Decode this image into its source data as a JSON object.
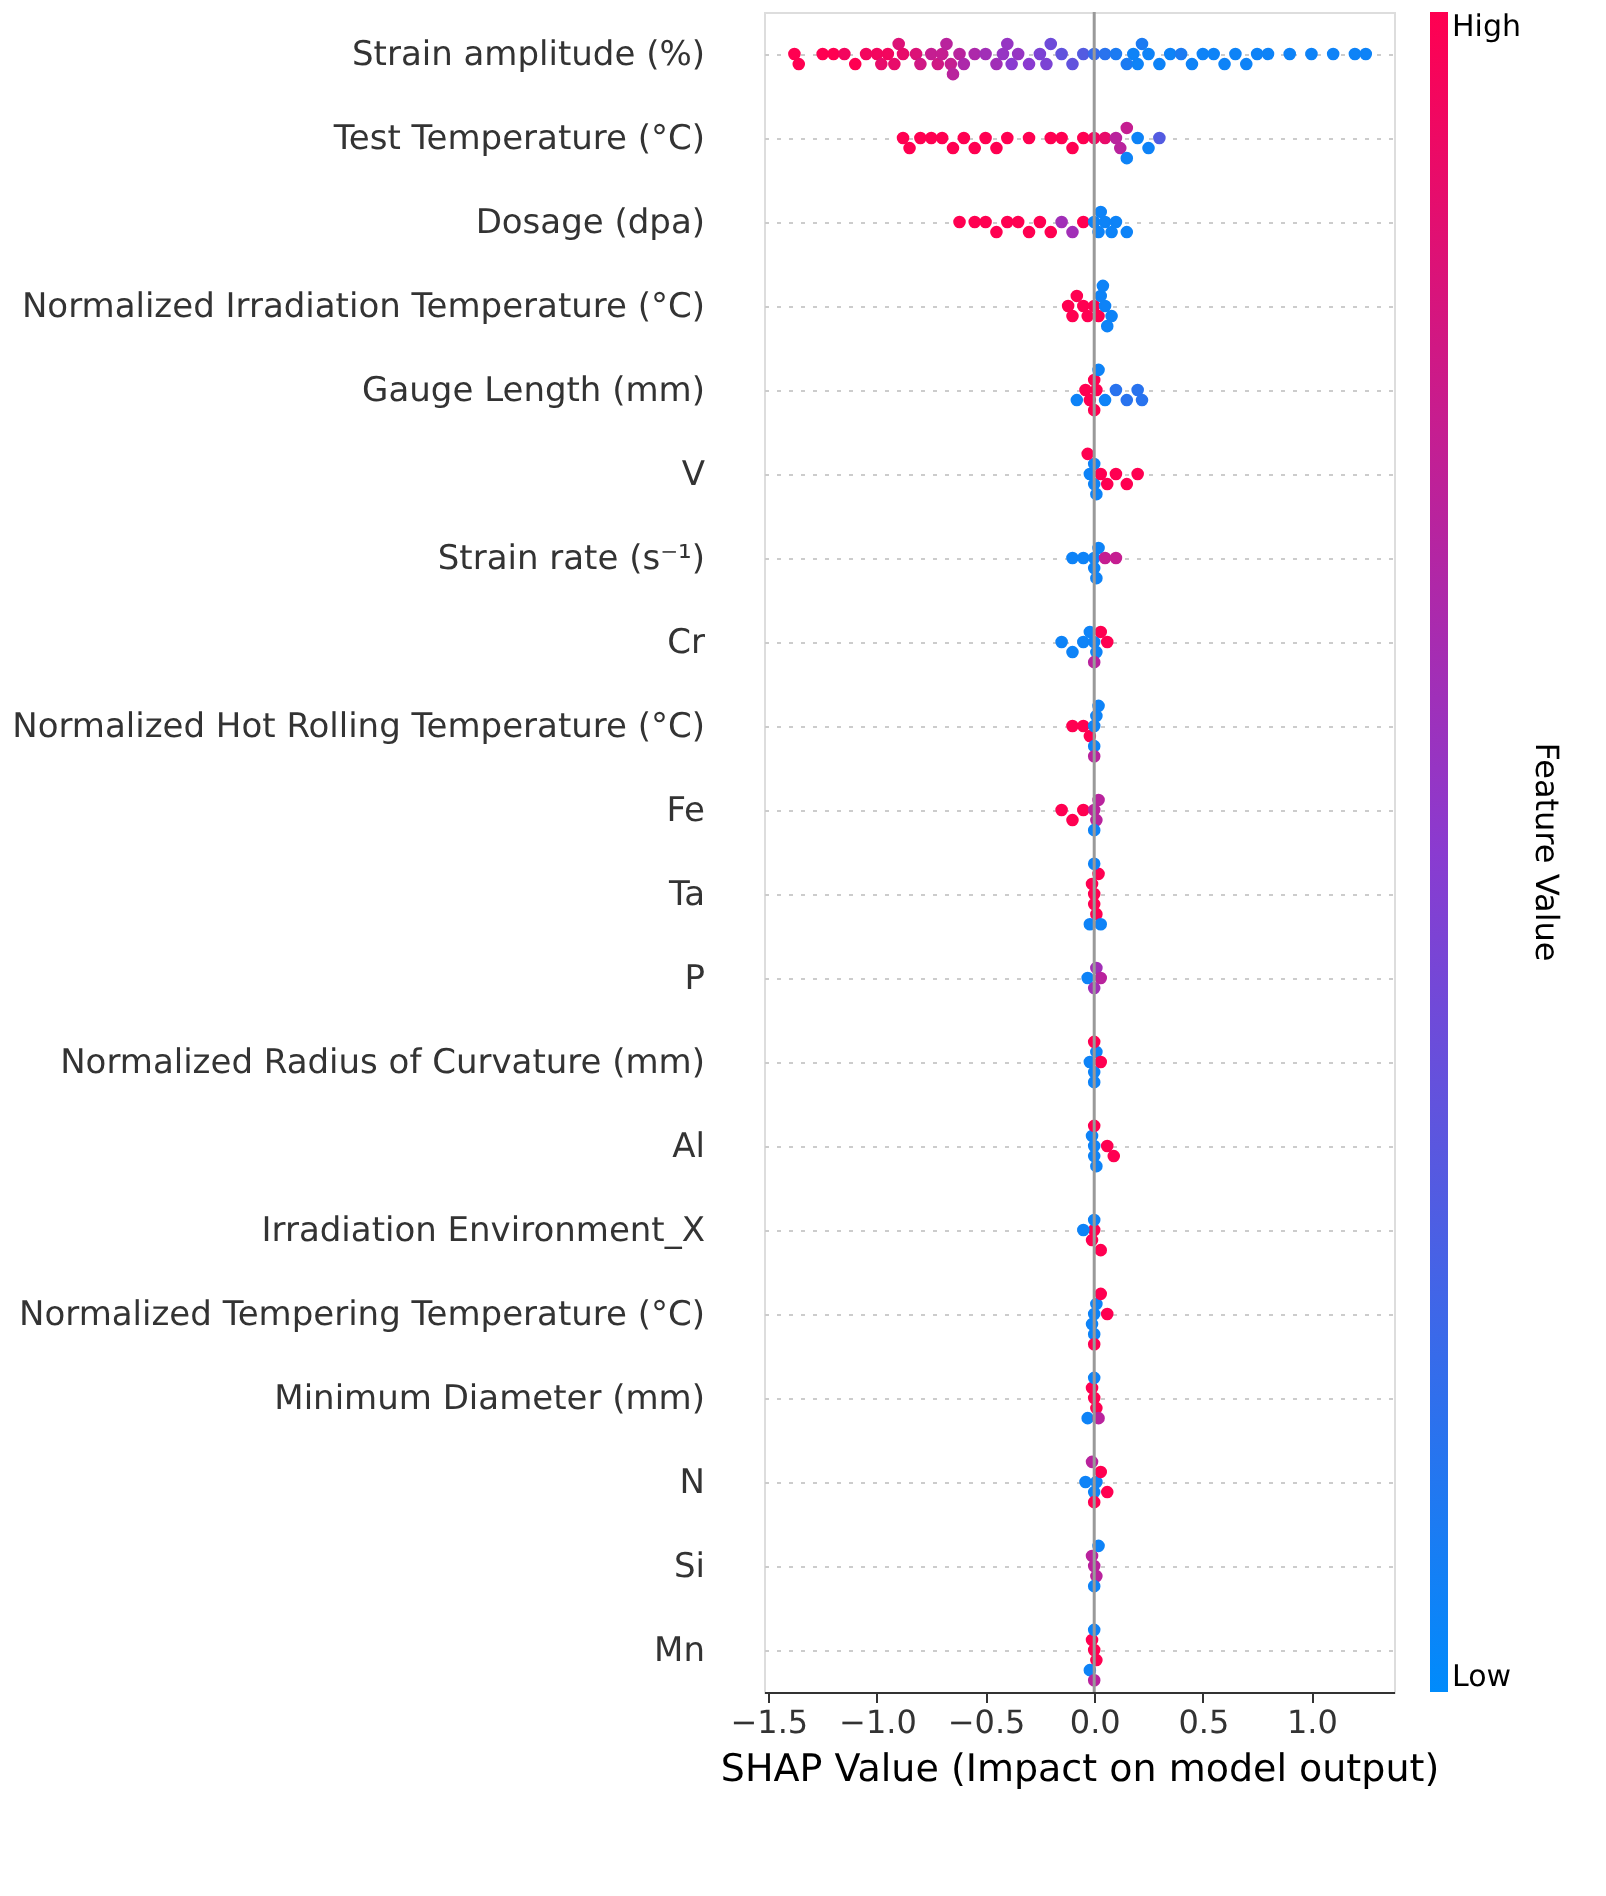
{
  "chart_data": {
    "type": "scatter",
    "orientation": "horizontal",
    "xlabel": "SHAP Value (Impact on model output)",
    "clabel": "Feature Value",
    "marker": "circle",
    "categories": [
      "Strain amplitude (%)",
      "Test Temperature (°C)",
      "Dosage (dpa)",
      "Normalized Irradiation Temperature (°C)",
      "Gauge Length (mm)",
      "V",
      "Strain rate (s⁻¹)",
      "Cr",
      "Normalized Hot Rolling Temperature (°C)",
      "Fe",
      "Ta",
      "P",
      "Normalized Radius of Curvature (mm)",
      "Al",
      "Irradiation Environment_X",
      "Normalized Tempering Temperature (°C)",
      "Minimum Diameter (mm)",
      "N",
      "Si",
      "Mn"
    ],
    "series": [
      {
        "x": [
          "Strain amplitude (%)",
          "Strain amplitude (%)",
          "Strain amplitude (%)",
          "Strain amplitude (%)",
          "Strain amplitude (%)",
          "Strain amplitude (%)",
          "Strain amplitude (%)",
          "Strain amplitude (%)",
          "Strain amplitude (%)",
          "Strain amplitude (%)",
          "Strain amplitude (%)",
          "Strain amplitude (%)",
          "Strain amplitude (%)",
          "Strain amplitude (%)",
          "Strain amplitude (%)",
          "Strain amplitude (%)",
          "Strain amplitude (%)",
          "Strain amplitude (%)",
          "Strain amplitude (%)",
          "Strain amplitude (%)",
          "Strain amplitude (%)",
          "Strain amplitude (%)",
          "Strain amplitude (%)",
          "Strain amplitude (%)",
          "Strain amplitude (%)",
          "Strain amplitude (%)",
          "Strain amplitude (%)",
          "Strain amplitude (%)",
          "Strain amplitude (%)",
          "Strain amplitude (%)",
          "Strain amplitude (%)",
          "Strain amplitude (%)",
          "Strain amplitude (%)",
          "Strain amplitude (%)",
          "Strain amplitude (%)",
          "Strain amplitude (%)",
          "Strain amplitude (%)",
          "Strain amplitude (%)",
          "Strain amplitude (%)",
          "Strain amplitude (%)",
          "Strain amplitude (%)",
          "Strain amplitude (%)",
          "Strain amplitude (%)",
          "Strain amplitude (%)",
          "Strain amplitude (%)",
          "Strain amplitude (%)",
          "Strain amplitude (%)",
          "Strain amplitude (%)",
          "Strain amplitude (%)",
          "Strain amplitude (%)",
          "Strain amplitude (%)",
          "Strain amplitude (%)",
          "Strain amplitude (%)",
          "Strain amplitude (%)",
          "Strain amplitude (%)",
          "Strain amplitude (%)",
          "Strain amplitude (%)",
          "Strain amplitude (%)",
          "Strain amplitude (%)",
          "Strain amplitude (%)",
          "Strain amplitude (%)"
        ],
        "values": [
          -1.38,
          -1.36,
          -1.25,
          -1.2,
          -1.15,
          -1.1,
          -1.05,
          -1.0,
          -0.98,
          -0.95,
          -0.92,
          -0.9,
          -0.88,
          -0.82,
          -0.8,
          -0.75,
          -0.72,
          -0.7,
          -0.68,
          -0.66,
          -0.65,
          -0.62,
          -0.6,
          -0.55,
          -0.5,
          -0.45,
          -0.42,
          -0.4,
          -0.38,
          -0.35,
          -0.3,
          -0.25,
          -0.22,
          -0.2,
          -0.15,
          -0.1,
          -0.05,
          0.0,
          0.05,
          0.1,
          0.15,
          0.18,
          0.2,
          0.22,
          0.25,
          0.3,
          0.35,
          0.4,
          0.45,
          0.5,
          0.55,
          0.6,
          0.65,
          0.7,
          0.75,
          0.8,
          0.9,
          1.0,
          1.1,
          1.2,
          1.25
        ],
        "cvalues": [
          1,
          1,
          1,
          1,
          0.95,
          1,
          0.95,
          0.95,
          0.9,
          0.95,
          0.9,
          0.85,
          0.9,
          0.85,
          0.8,
          0.75,
          0.8,
          0.75,
          0.7,
          0.75,
          0.7,
          0.7,
          0.65,
          0.65,
          0.6,
          0.6,
          0.55,
          0.55,
          0.5,
          0.55,
          0.5,
          0.45,
          0.45,
          0.4,
          0.35,
          0.35,
          0.3,
          0.2,
          0.15,
          0.1,
          0.1,
          0.05,
          0.05,
          0.1,
          0.05,
          0.05,
          0.05,
          0.1,
          0.05,
          0.05,
          0.05,
          0.05,
          0.05,
          0.05,
          0.05,
          0.05,
          0.05,
          0.05,
          0.05,
          0.05,
          0.05
        ],
        "colors": [
          "#ff0051",
          "#ff0051",
          "#ff0051",
          "#ff0051",
          "#f3065e",
          "#ff0051",
          "#f3065e",
          "#f3065e",
          "#e80c6a",
          "#f3065e",
          "#e80c6a",
          "#dc1277",
          "#e80c6a",
          "#dc1277",
          "#d01884",
          "#c51e91",
          "#d01884",
          "#c51e91",
          "#b9239d",
          "#c51e91",
          "#b9239d",
          "#b9239d",
          "#ad29aa",
          "#ad29aa",
          "#a12fb7",
          "#a12fb7",
          "#9635c3",
          "#9635c3",
          "#8a3bd0",
          "#9635c3",
          "#8a3bd0",
          "#7c43d4",
          "#7c43d4",
          "#6e4bd9",
          "#6153dd",
          "#6153dd",
          "#535be1",
          "#376bea",
          "#2973ee",
          "#1c7bf2",
          "#1c7bf2",
          "#0e83f7",
          "#0e83f7",
          "#1c7bf2",
          "#0e83f7",
          "#0e83f7",
          "#0e83f7",
          "#1c7bf2",
          "#0e83f7",
          "#0e83f7",
          "#0e83f7",
          "#0e83f7",
          "#0e83f7",
          "#0e83f7",
          "#0e83f7",
          "#0e83f7",
          "#0e83f7",
          "#0e83f7",
          "#0e83f7",
          "#0e83f7",
          "#0e83f7"
        ]
      },
      {
        "x": [
          "Test Temperature (°C)",
          "Test Temperature (°C)",
          "Test Temperature (°C)",
          "Test Temperature (°C)",
          "Test Temperature (°C)",
          "Test Temperature (°C)",
          "Test Temperature (°C)",
          "Test Temperature (°C)",
          "Test Temperature (°C)",
          "Test Temperature (°C)",
          "Test Temperature (°C)",
          "Test Temperature (°C)",
          "Test Temperature (°C)",
          "Test Temperature (°C)",
          "Test Temperature (°C)",
          "Test Temperature (°C)",
          "Test Temperature (°C)",
          "Test Temperature (°C)",
          "Test Temperature (°C)",
          "Test Temperature (°C)",
          "Test Temperature (°C)",
          "Test Temperature (°C)",
          "Test Temperature (°C)",
          "Test Temperature (°C)",
          "Test Temperature (°C)"
        ],
        "values": [
          -0.88,
          -0.85,
          -0.8,
          -0.75,
          -0.7,
          -0.65,
          -0.6,
          -0.55,
          -0.5,
          -0.45,
          -0.4,
          -0.3,
          -0.2,
          -0.15,
          -0.1,
          -0.05,
          0.0,
          0.05,
          0.1,
          0.12,
          0.15,
          0.15,
          0.2,
          0.25,
          0.3
        ],
        "cvalues": [
          1,
          1,
          1,
          1,
          1,
          1,
          1,
          1,
          1,
          1,
          1,
          1,
          1,
          1,
          1,
          1,
          0.95,
          0.9,
          0.7,
          0.7,
          0.75,
          0.05,
          0.05,
          0.05,
          0.3
        ],
        "colors": [
          "#ff0051",
          "#ff0051",
          "#ff0051",
          "#ff0051",
          "#ff0051",
          "#ff0051",
          "#ff0051",
          "#ff0051",
          "#ff0051",
          "#ff0051",
          "#ff0051",
          "#ff0051",
          "#ff0051",
          "#ff0051",
          "#ff0051",
          "#ff0051",
          "#f3065e",
          "#e80c6a",
          "#b9239d",
          "#b9239d",
          "#c51e91",
          "#0e83f7",
          "#0e83f7",
          "#0e83f7",
          "#535be1"
        ]
      },
      {
        "x": [
          "Dosage (dpa)",
          "Dosage (dpa)",
          "Dosage (dpa)",
          "Dosage (dpa)",
          "Dosage (dpa)",
          "Dosage (dpa)",
          "Dosage (dpa)",
          "Dosage (dpa)",
          "Dosage (dpa)",
          "Dosage (dpa)",
          "Dosage (dpa)",
          "Dosage (dpa)",
          "Dosage (dpa)",
          "Dosage (dpa)",
          "Dosage (dpa)",
          "Dosage (dpa)",
          "Dosage (dpa)",
          "Dosage (dpa)",
          "Dosage (dpa)"
        ],
        "values": [
          -0.62,
          -0.55,
          -0.5,
          -0.45,
          -0.4,
          -0.35,
          -0.3,
          -0.25,
          -0.2,
          -0.15,
          -0.1,
          -0.05,
          0.0,
          0.02,
          0.05,
          0.08,
          0.1,
          0.03,
          0.15
        ],
        "cvalues": [
          1,
          1,
          1,
          1,
          1,
          1,
          1,
          1,
          1,
          0.6,
          0.6,
          1,
          0.05,
          0.05,
          0.05,
          0.05,
          0.05,
          0.05,
          0.05
        ],
        "colors": [
          "#ff0051",
          "#ff0051",
          "#ff0051",
          "#ff0051",
          "#ff0051",
          "#ff0051",
          "#ff0051",
          "#ff0051",
          "#ff0051",
          "#a12fb7",
          "#a12fb7",
          "#ff0051",
          "#0e83f7",
          "#0e83f7",
          "#0e83f7",
          "#0e83f7",
          "#0e83f7",
          "#0e83f7",
          "#0e83f7"
        ]
      },
      {
        "x": [
          "Normalized Irradiation Temperature (°C)",
          "Normalized Irradiation Temperature (°C)",
          "Normalized Irradiation Temperature (°C)",
          "Normalized Irradiation Temperature (°C)",
          "Normalized Irradiation Temperature (°C)",
          "Normalized Irradiation Temperature (°C)",
          "Normalized Irradiation Temperature (°C)",
          "Normalized Irradiation Temperature (°C)",
          "Normalized Irradiation Temperature (°C)",
          "Normalized Irradiation Temperature (°C)",
          "Normalized Irradiation Temperature (°C)",
          "Normalized Irradiation Temperature (°C)"
        ],
        "values": [
          -0.12,
          -0.1,
          -0.08,
          -0.05,
          -0.03,
          0.0,
          0.02,
          0.03,
          0.05,
          0.06,
          0.08,
          0.04
        ],
        "cvalues": [
          1,
          1,
          1,
          1,
          1,
          1,
          1,
          0.05,
          0.05,
          0.05,
          0.05,
          0.05
        ],
        "colors": [
          "#ff0051",
          "#ff0051",
          "#ff0051",
          "#ff0051",
          "#ff0051",
          "#ff0051",
          "#ff0051",
          "#0e83f7",
          "#0e83f7",
          "#0e83f7",
          "#0e83f7",
          "#0e83f7"
        ]
      },
      {
        "x": [
          "Gauge Length (mm)",
          "Gauge Length (mm)",
          "Gauge Length (mm)",
          "Gauge Length (mm)",
          "Gauge Length (mm)",
          "Gauge Length (mm)",
          "Gauge Length (mm)",
          "Gauge Length (mm)",
          "Gauge Length (mm)",
          "Gauge Length (mm)",
          "Gauge Length (mm)",
          "Gauge Length (mm)"
        ],
        "values": [
          -0.04,
          -0.02,
          0.0,
          0.0,
          0.01,
          -0.08,
          0.05,
          0.1,
          0.15,
          0.2,
          0.22,
          0.02
        ],
        "cvalues": [
          1,
          1,
          1,
          1,
          1,
          0.05,
          0.05,
          0.15,
          0.15,
          0.15,
          0.15,
          0.05
        ],
        "colors": [
          "#ff0051",
          "#ff0051",
          "#ff0051",
          "#ff0051",
          "#ff0051",
          "#0e83f7",
          "#0e83f7",
          "#2973ee",
          "#2973ee",
          "#2973ee",
          "#2973ee",
          "#0e83f7"
        ]
      },
      {
        "x": [
          "V",
          "V",
          "V",
          "V",
          "V",
          "V",
          "V",
          "V",
          "V",
          "V"
        ],
        "values": [
          -0.02,
          0.0,
          0.0,
          0.01,
          -0.03,
          0.03,
          0.06,
          0.1,
          0.15,
          0.2
        ],
        "cvalues": [
          0.05,
          0.05,
          0.05,
          0.05,
          1,
          1,
          1,
          1,
          1,
          1
        ],
        "colors": [
          "#0e83f7",
          "#0e83f7",
          "#0e83f7",
          "#0e83f7",
          "#ff0051",
          "#ff0051",
          "#ff0051",
          "#ff0051",
          "#ff0051",
          "#ff0051"
        ]
      },
      {
        "x": [
          "Strain rate (s⁻¹)",
          "Strain rate (s⁻¹)",
          "Strain rate (s⁻¹)",
          "Strain rate (s⁻¹)",
          "Strain rate (s⁻¹)",
          "Strain rate (s⁻¹)",
          "Strain rate (s⁻¹)",
          "Strain rate (s⁻¹)"
        ],
        "values": [
          -0.1,
          -0.05,
          0.0,
          0.0,
          0.02,
          0.01,
          0.05,
          0.1
        ],
        "cvalues": [
          0.05,
          0.05,
          0.05,
          0.05,
          0.05,
          0.05,
          0.75,
          0.75
        ],
        "colors": [
          "#0e83f7",
          "#0e83f7",
          "#0e83f7",
          "#0e83f7",
          "#0e83f7",
          "#0e83f7",
          "#c51e91",
          "#c51e91"
        ]
      },
      {
        "x": [
          "Cr",
          "Cr",
          "Cr",
          "Cr",
          "Cr",
          "Cr",
          "Cr",
          "Cr",
          "Cr"
        ],
        "values": [
          -0.15,
          -0.1,
          -0.05,
          0.0,
          0.01,
          -0.02,
          0.03,
          0.06,
          0.0
        ],
        "cvalues": [
          0.05,
          0.05,
          0.05,
          0.05,
          0.05,
          0.05,
          1,
          1,
          0.7
        ],
        "colors": [
          "#0e83f7",
          "#0e83f7",
          "#0e83f7",
          "#0e83f7",
          "#0e83f7",
          "#0e83f7",
          "#ff0051",
          "#ff0051",
          "#b9239d"
        ]
      },
      {
        "x": [
          "Normalized Hot Rolling Temperature (°C)",
          "Normalized Hot Rolling Temperature (°C)",
          "Normalized Hot Rolling Temperature (°C)",
          "Normalized Hot Rolling Temperature (°C)",
          "Normalized Hot Rolling Temperature (°C)",
          "Normalized Hot Rolling Temperature (°C)",
          "Normalized Hot Rolling Temperature (°C)",
          "Normalized Hot Rolling Temperature (°C)"
        ],
        "values": [
          -0.1,
          -0.05,
          -0.02,
          0.0,
          0.01,
          0.0,
          0.02,
          0.0
        ],
        "cvalues": [
          1,
          1,
          1,
          0.05,
          0.05,
          0.05,
          0.05,
          0.7
        ],
        "colors": [
          "#ff0051",
          "#ff0051",
          "#ff0051",
          "#0e83f7",
          "#0e83f7",
          "#0e83f7",
          "#0e83f7",
          "#b9239d"
        ]
      },
      {
        "x": [
          "Fe",
          "Fe",
          "Fe",
          "Fe",
          "Fe",
          "Fe",
          "Fe"
        ],
        "values": [
          -0.15,
          -0.1,
          -0.05,
          0.0,
          0.01,
          0.02,
          0.0
        ],
        "cvalues": [
          1,
          1,
          1,
          0.7,
          0.7,
          0.7,
          0.05
        ],
        "colors": [
          "#ff0051",
          "#ff0051",
          "#ff0051",
          "#b9239d",
          "#b9239d",
          "#b9239d",
          "#0e83f7"
        ]
      },
      {
        "x": [
          "Ta",
          "Ta",
          "Ta",
          "Ta",
          "Ta",
          "Ta",
          "Ta",
          "Ta"
        ],
        "values": [
          0.0,
          0.0,
          -0.01,
          0.01,
          0.02,
          -0.02,
          0.03,
          0.0
        ],
        "cvalues": [
          1,
          1,
          1,
          1,
          1,
          0.05,
          0.05,
          0.05
        ],
        "colors": [
          "#ff0051",
          "#ff0051",
          "#ff0051",
          "#ff0051",
          "#ff0051",
          "#0e83f7",
          "#0e83f7",
          "#0e83f7"
        ]
      },
      {
        "x": [
          "P",
          "P",
          "P",
          "P"
        ],
        "values": [
          -0.03,
          0.0,
          0.01,
          0.03
        ],
        "cvalues": [
          0.05,
          0.6,
          0.6,
          0.7
        ],
        "colors": [
          "#0e83f7",
          "#a12fb7",
          "#a12fb7",
          "#b9239d"
        ]
      },
      {
        "x": [
          "Normalized Radius of Curvature (mm)",
          "Normalized Radius of Curvature (mm)",
          "Normalized Radius of Curvature (mm)",
          "Normalized Radius of Curvature (mm)",
          "Normalized Radius of Curvature (mm)",
          "Normalized Radius of Curvature (mm)"
        ],
        "values": [
          -0.02,
          0.0,
          0.01,
          0.0,
          0.03,
          0.0
        ],
        "cvalues": [
          0.05,
          0.05,
          0.05,
          0.05,
          1,
          1
        ],
        "colors": [
          "#0e83f7",
          "#0e83f7",
          "#0e83f7",
          "#0e83f7",
          "#ff0051",
          "#ff0051"
        ]
      },
      {
        "x": [
          "Al",
          "Al",
          "Al",
          "Al",
          "Al",
          "Al",
          "Al"
        ],
        "values": [
          0.0,
          0.0,
          -0.01,
          0.01,
          0.06,
          0.09,
          0.0
        ],
        "cvalues": [
          0.05,
          0.05,
          0.05,
          0.05,
          1,
          1,
          1
        ],
        "colors": [
          "#0e83f7",
          "#0e83f7",
          "#0e83f7",
          "#0e83f7",
          "#ff0051",
          "#ff0051",
          "#ff0051"
        ]
      },
      {
        "x": [
          "Irradiation Environment_X",
          "Irradiation Environment_X",
          "Irradiation Environment_X",
          "Irradiation Environment_X",
          "Irradiation Environment_X"
        ],
        "values": [
          0.0,
          -0.01,
          -0.05,
          0.0,
          0.03
        ],
        "cvalues": [
          1,
          1,
          0.05,
          0.05,
          1
        ],
        "colors": [
          "#ff0051",
          "#ff0051",
          "#0e83f7",
          "#0e83f7",
          "#ff0051"
        ]
      },
      {
        "x": [
          "Normalized Tempering Temperature (°C)",
          "Normalized Tempering Temperature (°C)",
          "Normalized Tempering Temperature (°C)",
          "Normalized Tempering Temperature (°C)",
          "Normalized Tempering Temperature (°C)",
          "Normalized Tempering Temperature (°C)",
          "Normalized Tempering Temperature (°C)"
        ],
        "values": [
          0.0,
          -0.01,
          0.01,
          0.0,
          0.03,
          0.06,
          0.0
        ],
        "cvalues": [
          0.05,
          0.05,
          0.05,
          0.05,
          1,
          1,
          1
        ],
        "colors": [
          "#0e83f7",
          "#0e83f7",
          "#0e83f7",
          "#0e83f7",
          "#ff0051",
          "#ff0051",
          "#ff0051"
        ]
      },
      {
        "x": [
          "Minimum Diameter (mm)",
          "Minimum Diameter (mm)",
          "Minimum Diameter (mm)",
          "Minimum Diameter (mm)",
          "Minimum Diameter (mm)",
          "Minimum Diameter (mm)"
        ],
        "values": [
          0.0,
          0.01,
          -0.01,
          -0.03,
          0.0,
          0.02
        ],
        "cvalues": [
          1,
          1,
          1,
          0.05,
          0.05,
          0.7
        ],
        "colors": [
          "#ff0051",
          "#ff0051",
          "#ff0051",
          "#0e83f7",
          "#0e83f7",
          "#b9239d"
        ]
      },
      {
        "x": [
          "N",
          "N",
          "N",
          "N",
          "N",
          "N",
          "N"
        ],
        "values": [
          -0.04,
          0.0,
          0.01,
          0.03,
          0.06,
          0.0,
          -0.01
        ],
        "cvalues": [
          0.05,
          0.05,
          0.05,
          1,
          1,
          1,
          0.7
        ],
        "colors": [
          "#0e83f7",
          "#0e83f7",
          "#0e83f7",
          "#ff0051",
          "#ff0051",
          "#ff0051",
          "#b9239d"
        ]
      },
      {
        "x": [
          "Si",
          "Si",
          "Si",
          "Si",
          "Si"
        ],
        "values": [
          0.0,
          0.01,
          -0.01,
          0.0,
          0.02
        ],
        "cvalues": [
          0.7,
          0.7,
          0.7,
          0.05,
          0.05
        ],
        "colors": [
          "#b9239d",
          "#b9239d",
          "#b9239d",
          "#0e83f7",
          "#0e83f7"
        ]
      },
      {
        "x": [
          "Mn",
          "Mn",
          "Mn",
          "Mn",
          "Mn",
          "Mn"
        ],
        "values": [
          0.0,
          0.01,
          -0.01,
          -0.02,
          0.0,
          0.0
        ],
        "cvalues": [
          1,
          1,
          1,
          0.05,
          0.05,
          0.7
        ],
        "colors": [
          "#ff0051",
          "#ff0051",
          "#ff0051",
          "#0e83f7",
          "#0e83f7",
          "#b9239d"
        ]
      }
    ],
    "xlim": [
      -1.52,
      1.38
    ],
    "xticks": [
      {
        "value": -1.5,
        "label": "−1.5"
      },
      {
        "value": -1.0,
        "label": "−1.0"
      },
      {
        "value": -0.5,
        "label": "−0.5"
      },
      {
        "value": 0.0,
        "label": "0.0"
      },
      {
        "value": 0.5,
        "label": "0.5"
      },
      {
        "value": 1.0,
        "label": "1.0"
      }
    ],
    "clim": [
      0,
      1
    ],
    "cticks": [
      {
        "value": 0,
        "label": "Low"
      },
      {
        "value": 1,
        "label": "High"
      }
    ],
    "ref_lines": [
      {
        "axis": "x",
        "value": 0,
        "color": "#999999"
      }
    ],
    "grid": "y"
  }
}
